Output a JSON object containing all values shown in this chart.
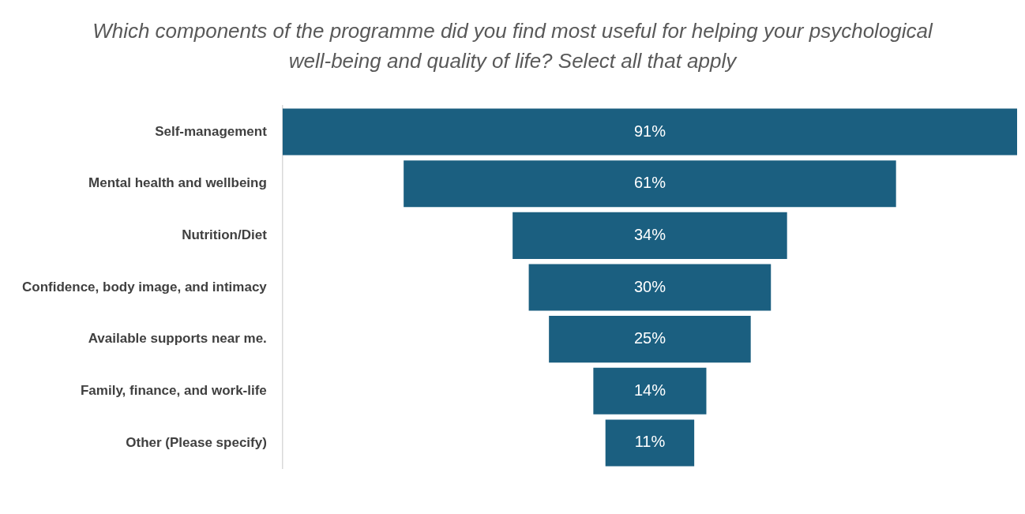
{
  "chart_data": {
    "type": "other",
    "title": "Which components of the programme did you find most useful for helping your psychological well-being and quality of life? Select all that apply",
    "categories": [
      "Self-management",
      "Mental health and wellbeing",
      "Nutrition/Diet",
      "Confidence, body image, and intimacy",
      "Available supports near me.",
      "Family, finance, and work-life",
      "Other (Please specify)"
    ],
    "values": [
      91,
      61,
      34,
      30,
      25,
      14,
      11
    ],
    "value_labels": [
      "91%",
      "61%",
      "34%",
      "30%",
      "25%",
      "14%",
      "11%"
    ],
    "color": "#1b5f80"
  }
}
